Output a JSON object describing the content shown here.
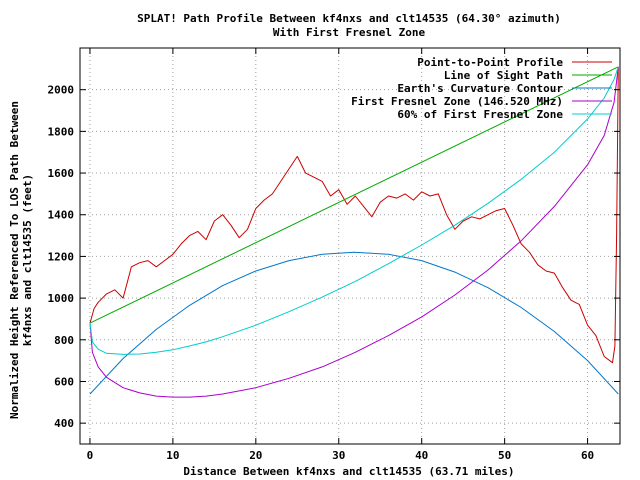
{
  "chart_data": {
    "type": "line",
    "title_line1": "SPLAT! Path Profile Between kf4nxs and clt14535 (64.30° azimuth)",
    "title_line2": "With First Fresnel Zone",
    "xlabel": "Distance Between kf4nxs and clt14535 (63.71 miles)",
    "ylabel_line1": "Normalized Height Referenced To LOS Path Between",
    "ylabel_line2": "kf4nxs and clt14535 (feet)",
    "xlim": [
      0,
      63.71
    ],
    "ylim": [
      300,
      2200
    ],
    "x_ticks": [
      "0",
      "10",
      "20",
      "30",
      "40",
      "50",
      "60"
    ],
    "x_tick_values": [
      0,
      10,
      20,
      30,
      40,
      50,
      60
    ],
    "y_ticks": [
      "400",
      "600",
      "800",
      "1000",
      "1200",
      "1400",
      "1600",
      "1800",
      "2000"
    ],
    "y_tick_values": [
      400,
      600,
      800,
      1000,
      1200,
      1400,
      1600,
      1800,
      2000
    ],
    "grid": true,
    "legend_position": "top-right",
    "series": [
      {
        "name": "Point-to-Point Profile",
        "color": "#cc0000",
        "x": [
          0,
          0.5,
          1,
          2,
          3,
          4,
          5,
          6,
          7,
          8,
          9,
          10,
          11,
          12,
          13,
          14,
          15,
          16,
          17,
          18,
          19,
          20,
          21,
          22,
          23,
          24,
          25,
          26,
          27,
          28,
          29,
          30,
          31,
          32,
          33,
          34,
          35,
          36,
          37,
          38,
          39,
          40,
          41,
          42,
          43,
          44,
          45,
          46,
          47,
          48,
          49,
          50,
          51,
          52,
          53,
          54,
          55,
          56,
          57,
          58,
          59,
          60,
          61,
          62,
          63,
          63.3,
          63.5,
          63.71
        ],
        "y": [
          880,
          950,
          980,
          1020,
          1040,
          1000,
          1150,
          1170,
          1180,
          1150,
          1180,
          1210,
          1260,
          1300,
          1320,
          1280,
          1370,
          1400,
          1350,
          1290,
          1330,
          1430,
          1470,
          1500,
          1560,
          1620,
          1680,
          1600,
          1580,
          1560,
          1490,
          1520,
          1450,
          1490,
          1440,
          1390,
          1460,
          1490,
          1480,
          1500,
          1470,
          1510,
          1490,
          1500,
          1400,
          1330,
          1370,
          1390,
          1380,
          1400,
          1420,
          1430,
          1350,
          1260,
          1220,
          1160,
          1130,
          1120,
          1050,
          990,
          970,
          870,
          820,
          720,
          690,
          770,
          1300,
          2110
        ]
      },
      {
        "name": "Line of Sight Path",
        "color": "#00aa00",
        "x": [
          0,
          63.71
        ],
        "y": [
          880,
          2110
        ]
      },
      {
        "name": "Earth's Curvature Contour",
        "color": "#0077cc",
        "x": [
          0,
          4,
          8,
          12,
          16,
          20,
          24,
          28,
          31.85,
          36,
          40,
          44,
          48,
          52,
          56,
          60,
          63.71
        ],
        "y": [
          540,
          710,
          850,
          965,
          1060,
          1130,
          1180,
          1210,
          1220,
          1210,
          1180,
          1125,
          1050,
          955,
          840,
          700,
          540
        ]
      },
      {
        "name": "First Fresnel Zone (146.520 MHz)",
        "color": "#aa00cc",
        "x": [
          0,
          0.3,
          1,
          2,
          4,
          6,
          8,
          10,
          12,
          14,
          16,
          20,
          24,
          28,
          32,
          36,
          40,
          44,
          48,
          52,
          56,
          60,
          62,
          63.2,
          63.71
        ],
        "y": [
          880,
          740,
          670,
          620,
          570,
          545,
          530,
          525,
          525,
          530,
          540,
          570,
          615,
          670,
          740,
          820,
          910,
          1015,
          1135,
          1275,
          1440,
          1640,
          1780,
          1940,
          2110
        ]
      },
      {
        "name": "60% of First Fresnel Zone",
        "color": "#00cccc",
        "x": [
          0,
          0.3,
          1,
          2,
          4,
          6,
          8,
          10,
          12,
          14,
          16,
          20,
          24,
          28,
          32,
          36,
          40,
          44,
          48,
          52,
          56,
          60,
          62,
          63.2,
          63.71
        ],
        "y": [
          880,
          790,
          755,
          735,
          730,
          732,
          740,
          752,
          770,
          790,
          815,
          870,
          935,
          1005,
          1080,
          1165,
          1255,
          1350,
          1455,
          1570,
          1700,
          1860,
          1960,
          2050,
          2110
        ]
      }
    ]
  }
}
